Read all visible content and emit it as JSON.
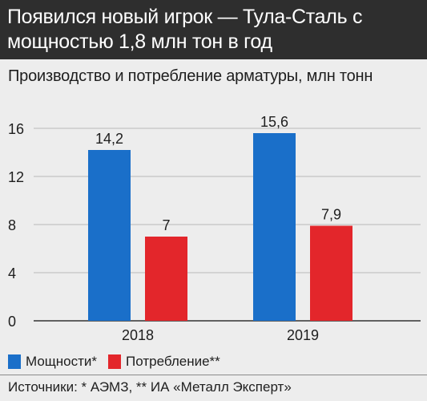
{
  "header": {
    "title_line1": "Появился новый игрок — Тула-Сталь с",
    "title_line2": "мощностью 1,8 млн тон в год"
  },
  "chart_data": {
    "type": "bar",
    "title": "Производство и потребление арматуры, млн тонн",
    "categories": [
      "2018",
      "2019"
    ],
    "series": [
      {
        "name": "Мощности*",
        "values": [
          14.2,
          15.6
        ],
        "labels": [
          "14,2",
          "15,6"
        ],
        "color": "#1a6fc9"
      },
      {
        "name": "Потребление**",
        "values": [
          7,
          7.9
        ],
        "labels": [
          "7",
          "7,9"
        ],
        "color": "#e3262b"
      }
    ],
    "ylim": [
      0,
      16
    ],
    "yticks": [
      0,
      4,
      8,
      12,
      16
    ],
    "grid": true,
    "legend": "bottom-left"
  },
  "footer": {
    "source": "Источники: * АЭМЗ, ** ИА «Металл Эксперт»"
  }
}
